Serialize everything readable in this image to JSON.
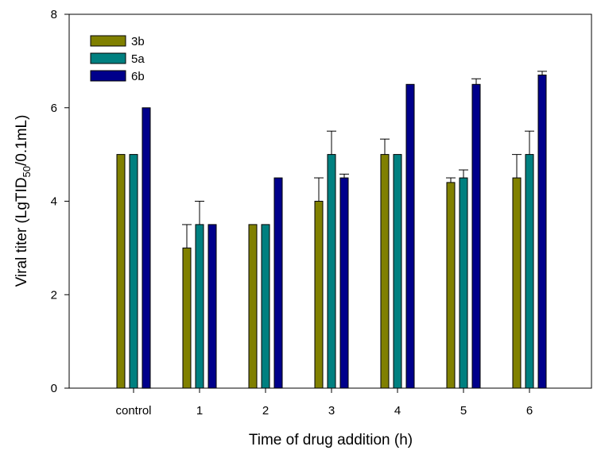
{
  "chart_data": {
    "type": "bar",
    "title": "",
    "xlabel": "Time of drug addition (h)",
    "ylabel": {
      "prefix": "Viral titer (LgTID",
      "subscript": "50",
      "suffix": "/0.1mL)"
    },
    "ylim": [
      0,
      8
    ],
    "yticks": [
      "0",
      "2",
      "4",
      "6",
      "8"
    ],
    "categories": [
      "control",
      "1",
      "2",
      "3",
      "4",
      "5",
      "6"
    ],
    "legend_position": "top-left",
    "series": [
      {
        "name": "3b",
        "color": "#808000",
        "values": [
          5.0,
          3.0,
          3.5,
          4.0,
          5.0,
          4.4,
          4.5
        ],
        "errors": [
          0,
          0.5,
          0,
          0.5,
          0.33,
          0.1,
          0.5
        ]
      },
      {
        "name": "5a",
        "color": "#008080",
        "values": [
          5.0,
          3.5,
          3.5,
          5.0,
          5.0,
          4.5,
          5.0
        ],
        "errors": [
          0,
          0.5,
          0,
          0.5,
          0,
          0.17,
          0.5
        ]
      },
      {
        "name": "6b",
        "color": "#00008B",
        "values": [
          6.0,
          3.5,
          4.5,
          4.5,
          6.5,
          6.5,
          6.7
        ],
        "errors": [
          0,
          0,
          0,
          0.08,
          0,
          0.12,
          0.08
        ]
      }
    ]
  }
}
